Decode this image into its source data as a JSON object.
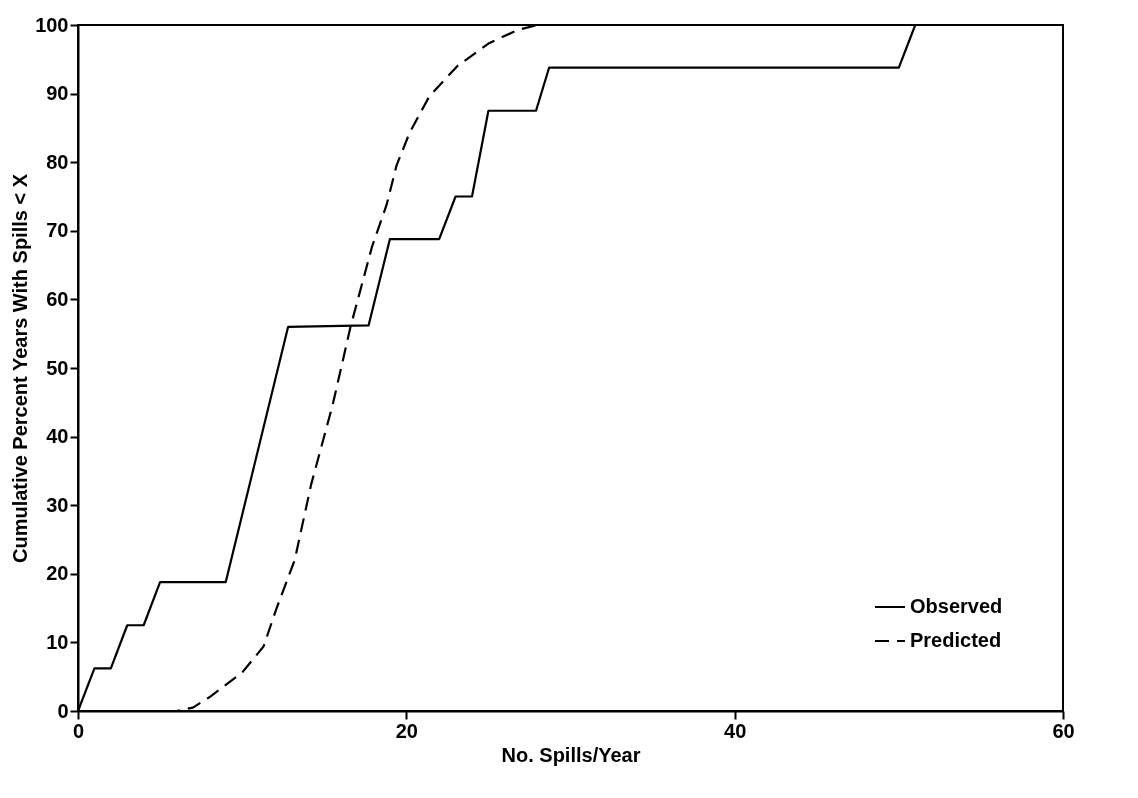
{
  "chart_data": {
    "type": "line",
    "xlabel": "No. Spills/Year",
    "ylabel": "Cumulative Percent Years With Spills < X",
    "xlim": [
      0,
      60
    ],
    "xticks": [
      0,
      20,
      40,
      60
    ],
    "ylim": [
      0,
      100
    ],
    "yticks": [
      0,
      10,
      20,
      30,
      40,
      50,
      60,
      70,
      80,
      90,
      100
    ],
    "grid": false,
    "legend": "bottom right",
    "marker": "none",
    "series": [
      {
        "name": "Observed",
        "color": "#000000",
        "line_style": "solid",
        "x": [
          0,
          1,
          2,
          3,
          4,
          5,
          9,
          12.8,
          17.7,
          19,
          22,
          23,
          24,
          25,
          27.9,
          28.7,
          50,
          51
        ],
        "values": [
          0,
          6.2,
          6.2,
          12.5,
          12.5,
          18.8,
          18.8,
          56,
          56.2,
          68.8,
          68.8,
          75,
          75,
          87.5,
          87.5,
          93.8,
          93.8,
          100
        ]
      },
      {
        "name": "Predicted",
        "color": "#000000",
        "line_style": "dashed",
        "x": [
          0,
          6,
          7,
          8,
          10,
          11.3,
          12.1,
          13.2,
          14.2,
          15.5,
          16.6,
          17.9,
          18.8,
          19.4,
          20.2,
          21.4,
          23.1,
          25,
          26.8,
          28,
          30
        ],
        "values": [
          0,
          0,
          0.5,
          2,
          5.6,
          9.4,
          15,
          22,
          33,
          44.5,
          56,
          67.6,
          73.8,
          79.5,
          84.3,
          89.6,
          94,
          97.3,
          99.3,
          100,
          100
        ]
      }
    ]
  }
}
